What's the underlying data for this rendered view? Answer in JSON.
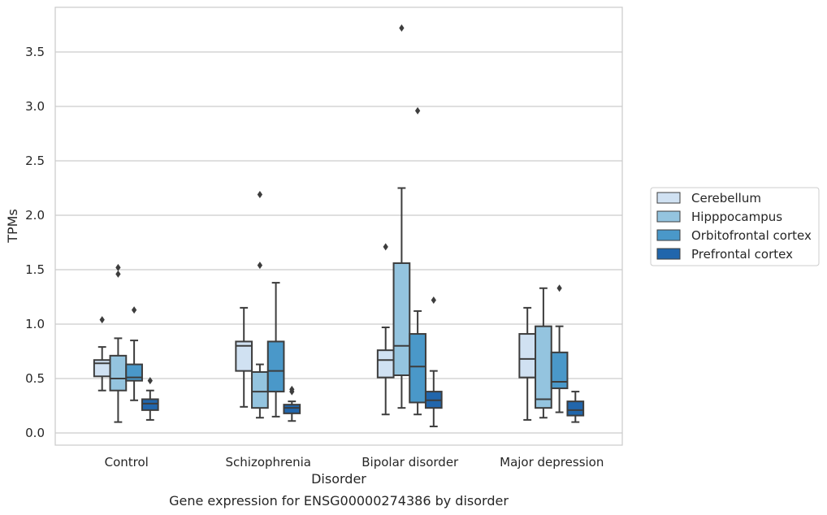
{
  "chart_data": {
    "type": "box",
    "caption": "Gene expression for ENSG00000274386 by disorder",
    "xlabel": "Disorder",
    "ylabel": "TPMs",
    "ylim": [
      -0.11,
      3.9
    ],
    "yticks": [
      0.0,
      0.5,
      1.0,
      1.5,
      2.0,
      2.5,
      3.0,
      3.5
    ],
    "ytick_labels": [
      "0.0",
      "0.5",
      "1.0",
      "1.5",
      "2.0",
      "2.5",
      "3.0",
      "3.5"
    ],
    "grid": "horizontal",
    "legend_position": "right",
    "categories": [
      "Control",
      "Schizophrenia",
      "Bipolar disorder",
      "Major depression"
    ],
    "series": [
      {
        "name": "Cerebellum",
        "color": "#d0e1f2",
        "boxes": [
          {
            "whisker_low": 0.39,
            "q1": 0.52,
            "median": 0.64,
            "q3": 0.67,
            "whisker_high": 0.79,
            "outliers": [
              1.04
            ]
          },
          {
            "whisker_low": 0.24,
            "q1": 0.57,
            "median": 0.8,
            "q3": 0.84,
            "whisker_high": 1.15,
            "outliers": []
          },
          {
            "whisker_low": 0.17,
            "q1": 0.51,
            "median": 0.67,
            "q3": 0.76,
            "whisker_high": 0.97,
            "outliers": [
              1.71
            ]
          },
          {
            "whisker_low": 0.12,
            "q1": 0.51,
            "median": 0.68,
            "q3": 0.91,
            "whisker_high": 1.15,
            "outliers": []
          }
        ]
      },
      {
        "name": "Hipppocampus",
        "color": "#94c4df",
        "boxes": [
          {
            "whisker_low": 0.1,
            "q1": 0.39,
            "median": 0.5,
            "q3": 0.71,
            "whisker_high": 0.87,
            "outliers": [
              1.46,
              1.52
            ]
          },
          {
            "whisker_low": 0.14,
            "q1": 0.23,
            "median": 0.38,
            "q3": 0.56,
            "whisker_high": 0.63,
            "outliers": [
              1.54,
              2.19
            ]
          },
          {
            "whisker_low": 0.23,
            "q1": 0.53,
            "median": 0.8,
            "q3": 1.56,
            "whisker_high": 2.25,
            "outliers": [
              3.72
            ]
          },
          {
            "whisker_low": 0.14,
            "q1": 0.23,
            "median": 0.31,
            "q3": 0.98,
            "whisker_high": 1.33,
            "outliers": []
          }
        ]
      },
      {
        "name": "Orbitofrontal cortex",
        "color": "#4a98c9",
        "boxes": [
          {
            "whisker_low": 0.3,
            "q1": 0.48,
            "median": 0.51,
            "q3": 0.63,
            "whisker_high": 0.85,
            "outliers": [
              1.13
            ]
          },
          {
            "whisker_low": 0.15,
            "q1": 0.38,
            "median": 0.57,
            "q3": 0.84,
            "whisker_high": 1.38,
            "outliers": []
          },
          {
            "whisker_low": 0.17,
            "q1": 0.28,
            "median": 0.61,
            "q3": 0.91,
            "whisker_high": 1.12,
            "outliers": [
              2.96
            ]
          },
          {
            "whisker_low": 0.19,
            "q1": 0.41,
            "median": 0.47,
            "q3": 0.74,
            "whisker_high": 0.98,
            "outliers": [
              1.33
            ]
          }
        ]
      },
      {
        "name": "Prefrontal cortex",
        "color": "#2166ac",
        "boxes": [
          {
            "whisker_low": 0.12,
            "q1": 0.21,
            "median": 0.27,
            "q3": 0.31,
            "whisker_high": 0.39,
            "outliers": [
              0.48
            ]
          },
          {
            "whisker_low": 0.11,
            "q1": 0.18,
            "median": 0.23,
            "q3": 0.26,
            "whisker_high": 0.29,
            "outliers": [
              0.38,
              0.4
            ]
          },
          {
            "whisker_low": 0.06,
            "q1": 0.23,
            "median": 0.3,
            "q3": 0.38,
            "whisker_high": 0.57,
            "outliers": [
              1.22
            ]
          },
          {
            "whisker_low": 0.1,
            "q1": 0.16,
            "median": 0.21,
            "q3": 0.29,
            "whisker_high": 0.38,
            "outliers": []
          }
        ]
      }
    ]
  }
}
